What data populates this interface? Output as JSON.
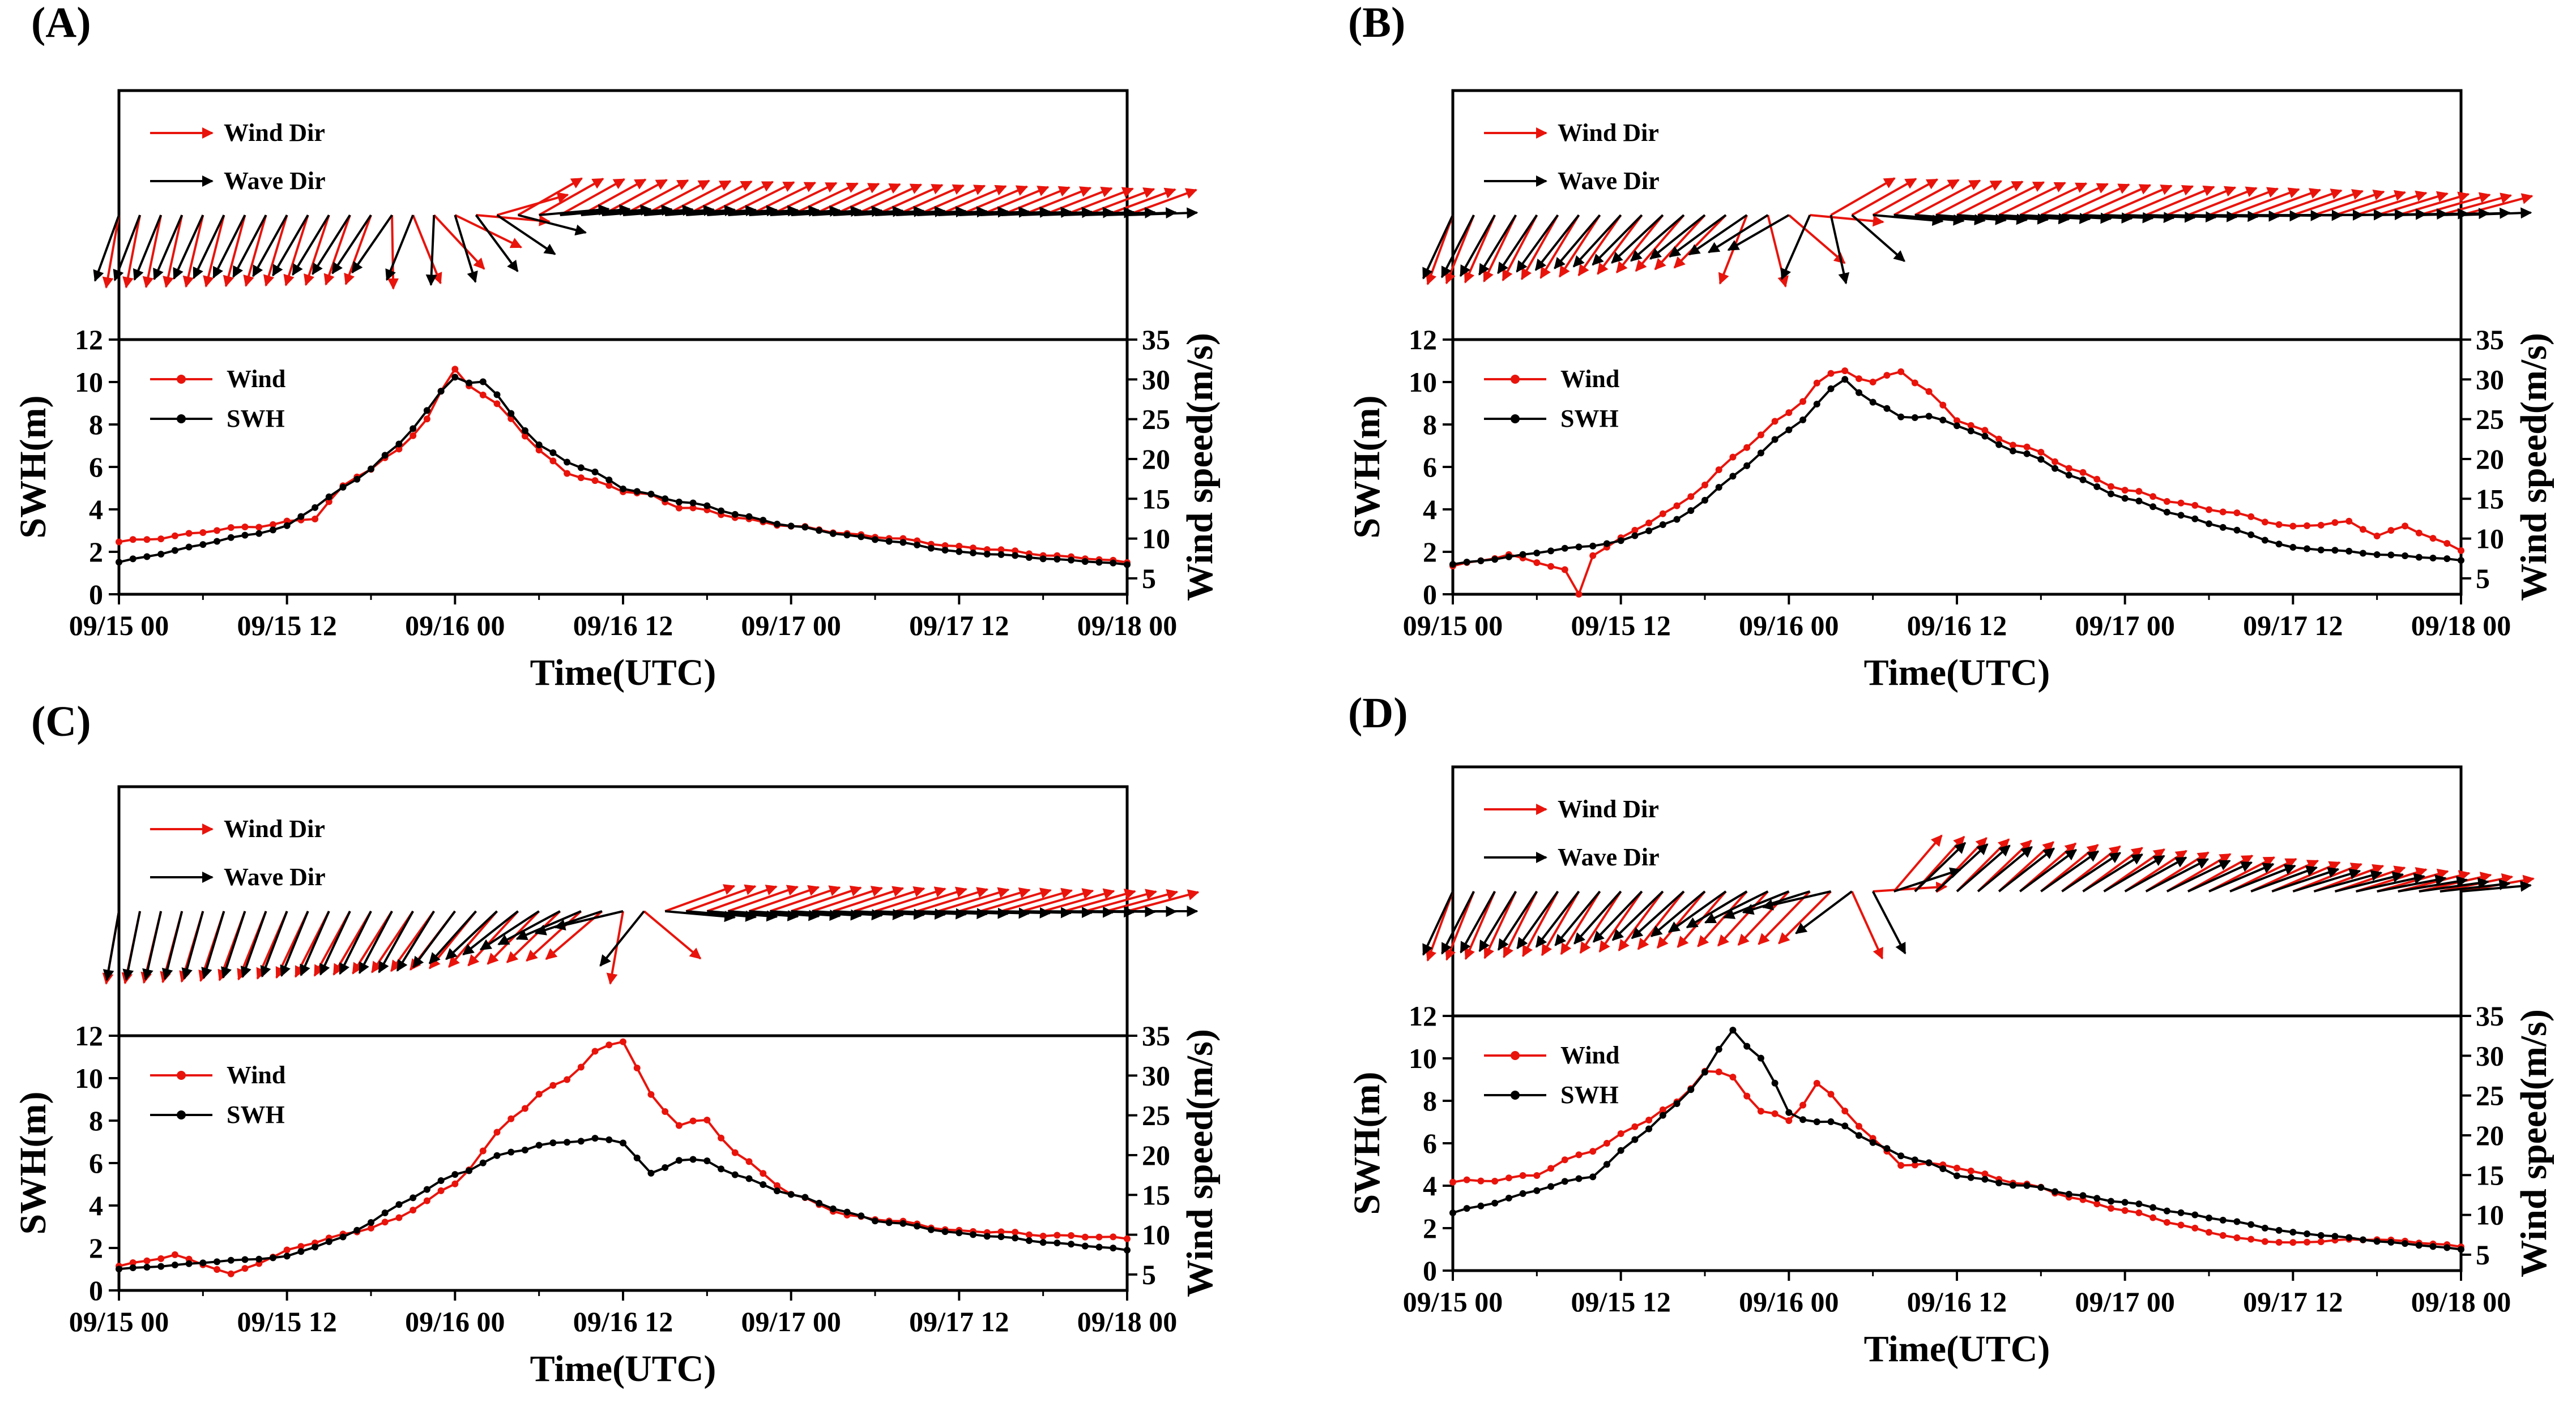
{
  "figure": {
    "panels": [
      "A",
      "B",
      "C",
      "D"
    ]
  },
  "chart_data": [
    {
      "panel_label": "(A)",
      "type": "line",
      "xlabel": "Time(UTC)",
      "ylabel_left": "SWH(m)",
      "ylabel_right": "Wind speed(m/s)",
      "x_tick_labels": [
        "09/15 00",
        "09/15 12",
        "09/16 00",
        "09/16 12",
        "09/17 00",
        "09/17 12",
        "09/18 00"
      ],
      "x_range_hours": [
        0,
        72
      ],
      "ylim_left": [
        0,
        12
      ],
      "y_ticks_left": [
        0,
        2,
        4,
        6,
        8,
        10,
        12
      ],
      "ylim_right": [
        3,
        35
      ],
      "y_ticks_right": [
        5,
        10,
        15,
        20,
        25,
        30,
        35
      ],
      "legend_lines": [
        "Wind",
        "SWH"
      ],
      "legend_arrows": [
        "Wind Dir",
        "Wave Dir"
      ],
      "colors": {
        "wind": "#e8140c",
        "swh": "#000000"
      },
      "series": [
        {
          "name": "Wind",
          "axis": "right",
          "x_hours": [
            0,
            14,
            16,
            17,
            20,
            22,
            24,
            26,
            28,
            30,
            32,
            34,
            36,
            38,
            40,
            48,
            60,
            72
          ],
          "values": [
            9.5,
            12.5,
            16.5,
            18.0,
            21.0,
            25.0,
            31.5,
            28.0,
            25.0,
            21.0,
            18.5,
            17.0,
            16.0,
            15.5,
            14.0,
            11.5,
            9.0,
            7.0
          ]
        },
        {
          "name": "SWH",
          "axis": "left",
          "x_hours": [
            0,
            12,
            16,
            20,
            24,
            26,
            30,
            36,
            48,
            60,
            72
          ],
          "values": [
            1.5,
            3.2,
            5.0,
            7.0,
            10.3,
            10.0,
            7.0,
            5.0,
            3.2,
            2.0,
            1.4
          ]
        }
      ],
      "direction_vectors": {
        "wind_deg": [
          [
            0,
            190
          ],
          [
            18,
            200
          ],
          [
            28,
            60
          ],
          [
            72,
            70
          ]
        ],
        "wave_deg": [
          [
            0,
            200
          ],
          [
            20,
            215
          ],
          [
            30,
            85
          ],
          [
            72,
            88
          ]
        ]
      }
    },
    {
      "panel_label": "(B)",
      "type": "line",
      "xlabel": "Time(UTC)",
      "ylabel_left": "SWH(m)",
      "ylabel_right": "Wind speed(m/s)",
      "x_tick_labels": [
        "09/15 00",
        "09/15 12",
        "09/16 00",
        "09/16 12",
        "09/17 00",
        "09/17 12",
        "09/18 00"
      ],
      "x_range_hours": [
        0,
        72
      ],
      "ylim_left": [
        0,
        12
      ],
      "y_ticks_left": [
        0,
        2,
        4,
        6,
        8,
        10,
        12
      ],
      "ylim_right": [
        3,
        35
      ],
      "y_ticks_right": [
        5,
        10,
        15,
        20,
        25,
        30,
        35
      ],
      "legend_lines": [
        "Wind",
        "SWH"
      ],
      "legend_arrows": [
        "Wind Dir",
        "Wave Dir"
      ],
      "colors": {
        "wind": "#e8140c",
        "swh": "#000000"
      },
      "series": [
        {
          "name": "Wind",
          "axis": "right",
          "x_hours": [
            0,
            4,
            8,
            9,
            10,
            12,
            16,
            20,
            24,
            26,
            28,
            30,
            32,
            34,
            36,
            48,
            60,
            64,
            66,
            68,
            72
          ],
          "values": [
            6.5,
            8.0,
            6.0,
            3.0,
            8.0,
            10.0,
            14.0,
            20.0,
            26.0,
            29.5,
            31.0,
            29.5,
            31.5,
            28.0,
            25.0,
            16.0,
            11.5,
            12.0,
            10.5,
            11.5,
            8.5
          ]
        },
        {
          "name": "SWH",
          "axis": "left",
          "x_hours": [
            0,
            12,
            16,
            20,
            24,
            28,
            30,
            32,
            36,
            48,
            60,
            72
          ],
          "values": [
            1.4,
            2.5,
            3.5,
            5.5,
            7.8,
            10.1,
            9.0,
            8.5,
            8.0,
            4.5,
            2.2,
            1.6
          ]
        }
      ],
      "direction_vectors": {
        "wind_deg": [
          [
            0,
            200
          ],
          [
            20,
            225
          ],
          [
            27,
            60
          ],
          [
            72,
            75
          ]
        ],
        "wave_deg": [
          [
            0,
            205
          ],
          [
            24,
            240
          ],
          [
            30,
            95
          ],
          [
            72,
            88
          ]
        ]
      }
    },
    {
      "panel_label": "(C)",
      "type": "line",
      "xlabel": "Time(UTC)",
      "ylabel_left": "SWH(m)",
      "ylabel_right": "Wind speed(m/s)",
      "x_tick_labels": [
        "09/15 00",
        "09/15 12",
        "09/16 00",
        "09/16 12",
        "09/17 00",
        "09/17 12",
        "09/18 00"
      ],
      "x_range_hours": [
        0,
        72
      ],
      "ylim_left": [
        0,
        12
      ],
      "y_ticks_left": [
        0,
        2,
        4,
        6,
        8,
        10,
        12
      ],
      "ylim_right": [
        3,
        35
      ],
      "y_ticks_right": [
        5,
        10,
        15,
        20,
        25,
        30,
        35
      ],
      "legend_lines": [
        "Wind",
        "SWH"
      ],
      "legend_arrows": [
        "Wind Dir",
        "Wave Dir"
      ],
      "colors": {
        "wind": "#e8140c",
        "swh": "#000000"
      },
      "series": [
        {
          "name": "Wind",
          "axis": "right",
          "x_hours": [
            0,
            4,
            8,
            12,
            16,
            20,
            24,
            28,
            30,
            32,
            34,
            36,
            38,
            40,
            42,
            44,
            48,
            52,
            60,
            72
          ],
          "values": [
            6.0,
            7.5,
            5.0,
            8.0,
            10.0,
            12.0,
            16.5,
            24.5,
            27.5,
            30.0,
            32.5,
            34.5,
            27.5,
            24.0,
            24.0,
            20.5,
            15.0,
            12.5,
            10.5,
            9.5
          ]
        },
        {
          "name": "SWH",
          "axis": "left",
          "x_hours": [
            0,
            12,
            16,
            20,
            24,
            28,
            32,
            36,
            38,
            40,
            42,
            48,
            54,
            60,
            72
          ],
          "values": [
            1.0,
            1.6,
            2.5,
            4.0,
            5.5,
            6.5,
            7.1,
            7.0,
            5.5,
            6.2,
            6.0,
            4.5,
            3.3,
            2.7,
            1.9
          ]
        }
      ],
      "direction_vectors": {
        "wind_deg": [
          [
            0,
            190
          ],
          [
            22,
            215
          ],
          [
            35,
            230
          ],
          [
            39,
            70
          ],
          [
            72,
            75
          ]
        ],
        "wave_deg": [
          [
            0,
            190
          ],
          [
            22,
            210
          ],
          [
            37,
            260
          ],
          [
            39,
            95
          ],
          [
            72,
            90
          ]
        ]
      }
    },
    {
      "panel_label": "(D)",
      "type": "line",
      "xlabel": "Time(UTC)",
      "ylabel_left": "SWH(m)",
      "ylabel_right": "Wind speed(m/s)",
      "x_tick_labels": [
        "09/15 00",
        "09/15 12",
        "09/16 00",
        "09/16 12",
        "09/17 00",
        "09/17 12",
        "09/18 00"
      ],
      "x_range_hours": [
        0,
        72
      ],
      "ylim_left": [
        0,
        12
      ],
      "y_ticks_left": [
        0,
        2,
        4,
        6,
        8,
        10,
        12
      ],
      "ylim_right": [
        3,
        35
      ],
      "y_ticks_right": [
        5,
        10,
        15,
        20,
        25,
        30,
        35
      ],
      "legend_lines": [
        "Wind",
        "SWH"
      ],
      "legend_arrows": [
        "Wind Dir",
        "Wave Dir"
      ],
      "colors": {
        "wind": "#e8140c",
        "swh": "#000000"
      },
      "series": [
        {
          "name": "Wind",
          "axis": "right",
          "x_hours": [
            0,
            6,
            12,
            16,
            18,
            20,
            22,
            24,
            26,
            28,
            30,
            32,
            36,
            48,
            56,
            60,
            66,
            72
          ],
          "values": [
            14.0,
            15.0,
            20.0,
            24.0,
            28.5,
            27.0,
            23.0,
            22.0,
            26.5,
            23.0,
            19.5,
            16.5,
            16.0,
            10.5,
            7.0,
            6.5,
            7.0,
            6.0
          ]
        },
        {
          "name": "SWH",
          "axis": "left",
          "x_hours": [
            0,
            10,
            16,
            20,
            22,
            24,
            26,
            28,
            30,
            36,
            48,
            60,
            72
          ],
          "values": [
            2.7,
            4.5,
            7.8,
            11.2,
            10.0,
            7.5,
            7.0,
            6.8,
            6.0,
            4.5,
            3.2,
            1.8,
            1.0
          ]
        }
      ],
      "direction_vectors": {
        "wind_deg": [
          [
            0,
            200
          ],
          [
            18,
            220
          ],
          [
            27,
            225
          ],
          [
            31,
            40
          ],
          [
            72,
            80
          ]
        ],
        "wave_deg": [
          [
            0,
            205
          ],
          [
            18,
            230
          ],
          [
            28,
            260
          ],
          [
            32,
            45
          ],
          [
            72,
            85
          ]
        ]
      }
    }
  ]
}
